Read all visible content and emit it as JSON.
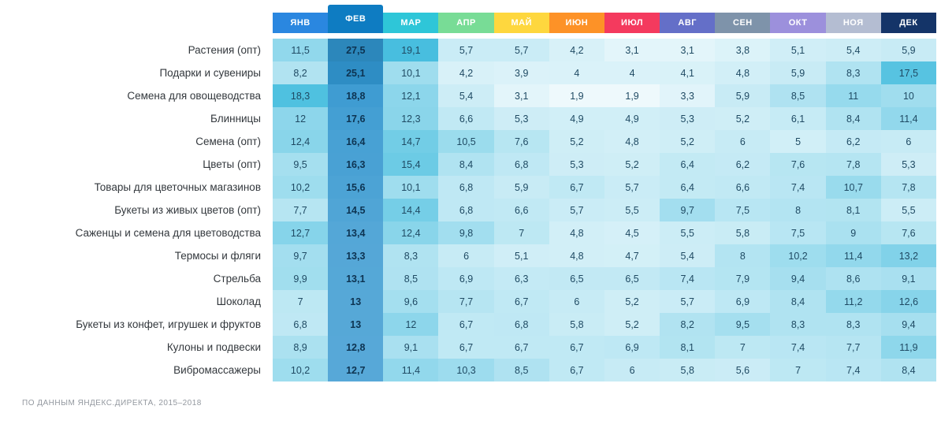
{
  "chart_data": {
    "type": "heatmap",
    "columns": [
      {
        "label": "ЯНВ",
        "color": "#2a87e0"
      },
      {
        "label": "ФЕВ",
        "color": "#0e7cc2"
      },
      {
        "label": "МАР",
        "color": "#2ec6d8"
      },
      {
        "label": "АПР",
        "color": "#78dc96"
      },
      {
        "label": "МАЙ",
        "color": "#fed73e"
      },
      {
        "label": "ИЮН",
        "color": "#fd9227"
      },
      {
        "label": "ИЮЛ",
        "color": "#f43a5e"
      },
      {
        "label": "АВГ",
        "color": "#646fc8"
      },
      {
        "label": "СЕН",
        "color": "#7e93aa"
      },
      {
        "label": "ОКТ",
        "color": "#9c90dc"
      },
      {
        "label": "НОЯ",
        "color": "#b4bdd2"
      },
      {
        "label": "ДЕК",
        "color": "#143468"
      }
    ],
    "selected_column_index": 1,
    "value_range": [
      1.9,
      27.5
    ],
    "rows": [
      {
        "label": "Растения (опт)",
        "values": [
          11.5,
          27.5,
          19.1,
          5.7,
          5.7,
          4.2,
          3.1,
          3.1,
          3.8,
          5.1,
          5.4,
          5.9
        ]
      },
      {
        "label": "Подарки и сувениры",
        "values": [
          8.2,
          25.1,
          10.1,
          4.2,
          3.9,
          4,
          4,
          4.1,
          4.8,
          5.9,
          8.3,
          17.5
        ]
      },
      {
        "label": "Семена для овощеводства",
        "values": [
          18.3,
          18.8,
          12.1,
          5.4,
          3.1,
          1.9,
          1.9,
          3.3,
          5.9,
          8.5,
          11,
          10
        ]
      },
      {
        "label": "Блинницы",
        "values": [
          12,
          17.6,
          12.3,
          6.6,
          5.3,
          4.9,
          4.9,
          5.3,
          5.2,
          6.1,
          8.4,
          11.4
        ]
      },
      {
        "label": "Семена (опт)",
        "values": [
          12.4,
          16.4,
          14.7,
          10.5,
          7.6,
          5.2,
          4.8,
          5.2,
          6,
          5,
          6.2,
          6
        ]
      },
      {
        "label": "Цветы (опт)",
        "values": [
          9.5,
          16.3,
          15.4,
          8.4,
          6.8,
          5.3,
          5.2,
          6.4,
          6.2,
          7.6,
          7.8,
          5.3
        ]
      },
      {
        "label": "Товары для цветочных магазинов",
        "values": [
          10.2,
          15.6,
          10.1,
          6.8,
          5.9,
          6.7,
          5.7,
          6.4,
          6.6,
          7.4,
          10.7,
          7.8
        ]
      },
      {
        "label": "Букеты из живых цветов (опт)",
        "values": [
          7.7,
          14.5,
          14.4,
          6.8,
          6.6,
          5.7,
          5.5,
          9.7,
          7.5,
          8,
          8.1,
          5.5
        ]
      },
      {
        "label": "Саженцы и семена для цветоводства",
        "values": [
          12.7,
          13.4,
          12.4,
          9.8,
          7,
          4.8,
          4.5,
          5.5,
          5.8,
          7.5,
          9,
          7.6
        ]
      },
      {
        "label": "Термосы и фляги",
        "values": [
          9.7,
          13.3,
          8.3,
          6,
          5.1,
          4.8,
          4.7,
          5.4,
          8,
          10.2,
          11.4,
          13.2
        ]
      },
      {
        "label": "Стрельба",
        "values": [
          9.9,
          13.1,
          8.5,
          6.9,
          6.3,
          6.5,
          6.5,
          7.4,
          7.9,
          9.4,
          8.6,
          9.1
        ]
      },
      {
        "label": "Шоколад",
        "values": [
          7,
          13,
          9.6,
          7.7,
          6.7,
          6,
          5.2,
          5.7,
          6.9,
          8.4,
          11.2,
          12.6
        ]
      },
      {
        "label": "Букеты из конфет, игрушек и фруктов",
        "values": [
          6.8,
          13,
          12,
          6.7,
          6.8,
          5.8,
          5.2,
          8.2,
          9.5,
          8.3,
          8.3,
          9.4
        ]
      },
      {
        "label": "Кулоны и подвески",
        "values": [
          8.9,
          12.8,
          9.1,
          6.7,
          6.7,
          6.7,
          6.9,
          8.1,
          7,
          7.4,
          7.7,
          11.9
        ]
      },
      {
        "label": "Вибромассажеры",
        "values": [
          10.2,
          12.7,
          11.4,
          10.3,
          8.5,
          6.7,
          6,
          5.8,
          5.6,
          7,
          7.4,
          8.4
        ]
      }
    ]
  },
  "footer": {
    "source_note": "ПО ДАННЫМ ЯНДЕКС.ДИРЕКТА, 2015–2018"
  }
}
